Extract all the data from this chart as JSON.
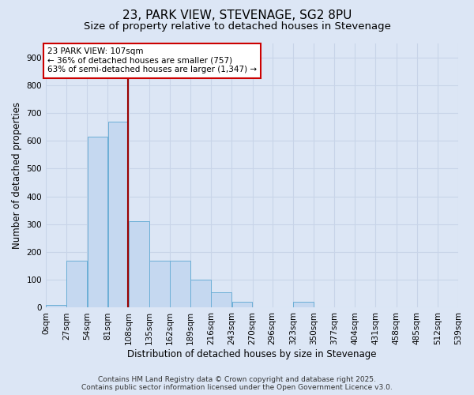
{
  "title": "23, PARK VIEW, STEVENAGE, SG2 8PU",
  "subtitle": "Size of property relative to detached houses in Stevenage",
  "xlabel": "Distribution of detached houses by size in Stevenage",
  "ylabel": "Number of detached properties",
  "bin_labels": [
    "0sqm",
    "27sqm",
    "54sqm",
    "81sqm",
    "108sqm",
    "135sqm",
    "162sqm",
    "189sqm",
    "216sqm",
    "243sqm",
    "270sqm",
    "296sqm",
    "323sqm",
    "350sqm",
    "377sqm",
    "404sqm",
    "431sqm",
    "458sqm",
    "485sqm",
    "512sqm",
    "539sqm"
  ],
  "bin_edges": [
    0,
    27,
    54,
    81,
    108,
    135,
    162,
    189,
    216,
    243,
    270,
    296,
    323,
    350,
    377,
    404,
    431,
    458,
    485,
    512,
    539
  ],
  "bar_heights": [
    10,
    170,
    615,
    670,
    310,
    170,
    170,
    100,
    55,
    20,
    0,
    0,
    20,
    0,
    0,
    0,
    0,
    0,
    0,
    0
  ],
  "bar_color": "#c5d8f0",
  "bar_edge_color": "#6baed6",
  "grid_color": "#c8d4e8",
  "bg_color": "#dce6f5",
  "vline_x": 107,
  "vline_color": "#990000",
  "annotation_text": "23 PARK VIEW: 107sqm\n← 36% of detached houses are smaller (757)\n63% of semi-detached houses are larger (1,347) →",
  "annotation_box_color": "#ffffff",
  "annotation_border_color": "#cc0000",
  "ylim": [
    0,
    950
  ],
  "yticks": [
    0,
    100,
    200,
    300,
    400,
    500,
    600,
    700,
    800,
    900
  ],
  "footer_text": "Contains HM Land Registry data © Crown copyright and database right 2025.\nContains public sector information licensed under the Open Government Licence v3.0.",
  "title_fontsize": 11,
  "subtitle_fontsize": 9.5,
  "axis_label_fontsize": 8.5,
  "tick_fontsize": 7.5,
  "footer_fontsize": 6.5
}
